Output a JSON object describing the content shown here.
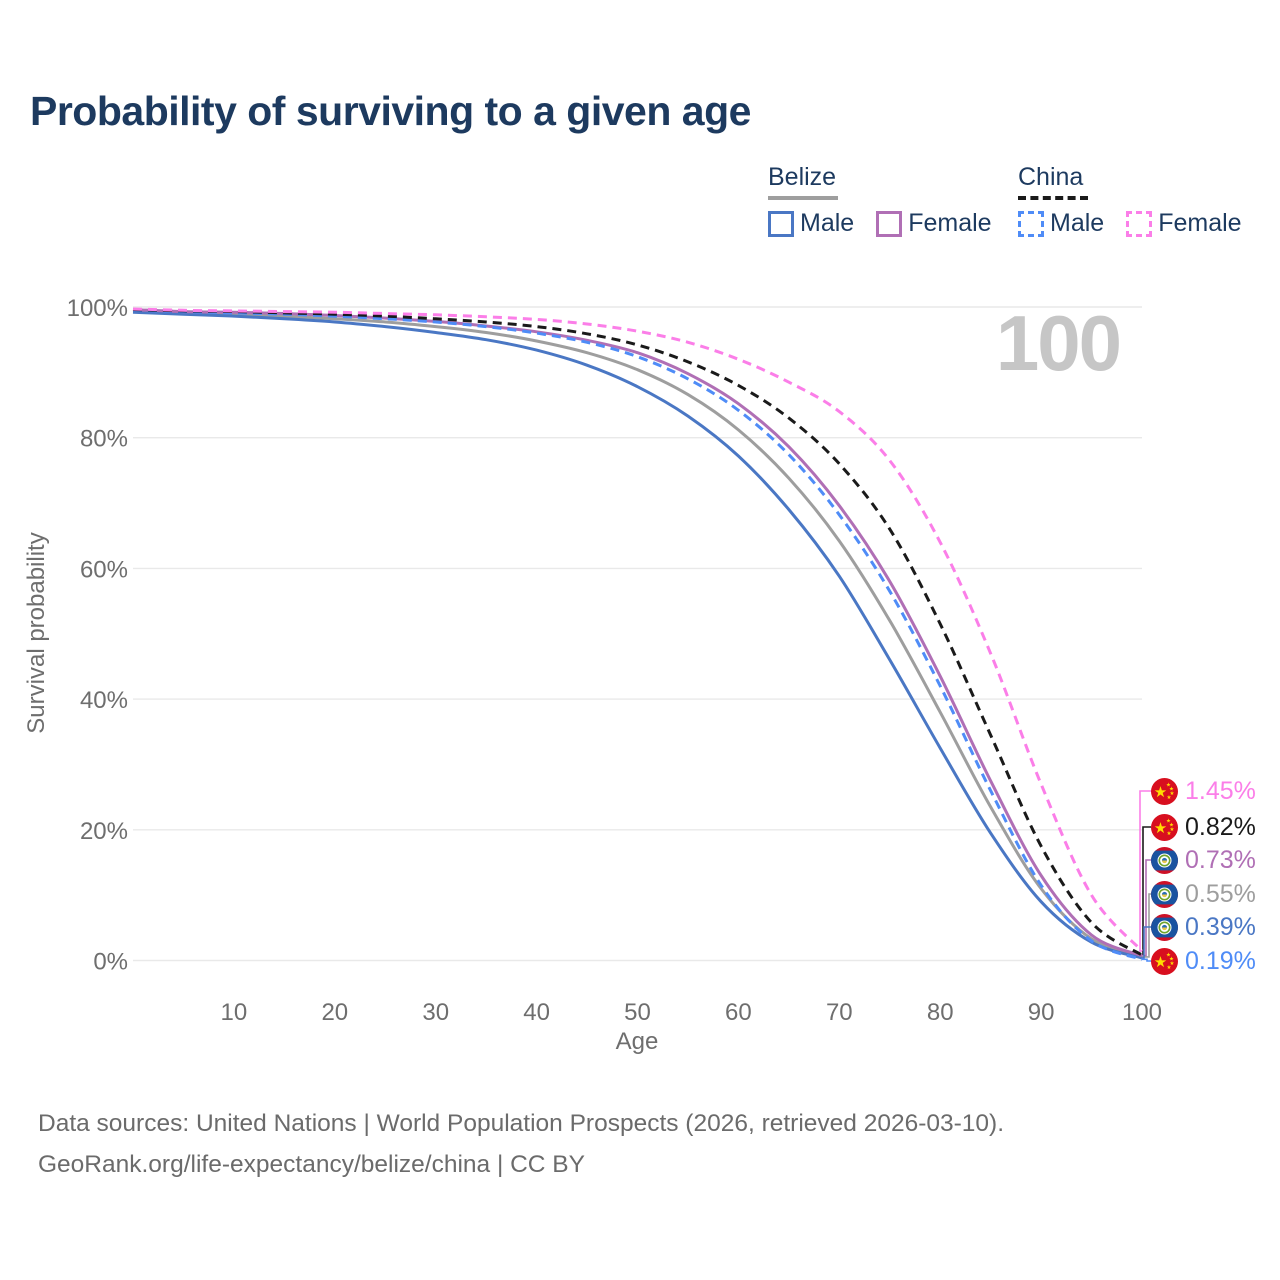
{
  "title": "Probability of surviving to a given age",
  "watermark": "100",
  "colors": {
    "title_text": "#1d3a5f",
    "axis_text": "#6e6e6e",
    "gridline": "#e9e9e9",
    "watermark": "#c6c6c6",
    "belize_male": "#4a77c4",
    "belize_female": "#b06fb5",
    "belize_all": "#9e9e9e",
    "china_male": "#4f8cf7",
    "china_female": "#fb7ee8",
    "china_all": "#1a1a1a"
  },
  "legend": {
    "groups": [
      {
        "label": "Belize",
        "style": "solid",
        "underline_color": "#9e9e9e",
        "items": [
          {
            "label": "Male",
            "color": "#4a77c4",
            "dashed": false
          },
          {
            "label": "Female",
            "color": "#b06fb5",
            "dashed": false
          }
        ]
      },
      {
        "label": "China",
        "style": "dashed",
        "underline_color": "#1a1a1a",
        "items": [
          {
            "label": "Male",
            "color": "#4f8cf7",
            "dashed": true
          },
          {
            "label": "Female",
            "color": "#fb7ee8",
            "dashed": true
          }
        ]
      }
    ]
  },
  "chart_data": {
    "type": "line",
    "title": "Probability of surviving to a given age",
    "xlabel": "Age",
    "ylabel": "Survival probability",
    "xlim": [
      0,
      100
    ],
    "ylim": [
      0,
      100
    ],
    "grid": "horizontal",
    "legend_position": "top-right",
    "x_ticks": [
      {
        "value": 10,
        "label": "10"
      },
      {
        "value": 20,
        "label": "20"
      },
      {
        "value": 30,
        "label": "30"
      },
      {
        "value": 40,
        "label": "40"
      },
      {
        "value": 50,
        "label": "50"
      },
      {
        "value": 60,
        "label": "60"
      },
      {
        "value": 70,
        "label": "70"
      },
      {
        "value": 80,
        "label": "80"
      },
      {
        "value": 90,
        "label": "90"
      },
      {
        "value": 100,
        "label": "100"
      }
    ],
    "y_ticks": [
      {
        "value": 0,
        "label": "0%"
      },
      {
        "value": 20,
        "label": "20%"
      },
      {
        "value": 40,
        "label": "40%"
      },
      {
        "value": 60,
        "label": "60%"
      },
      {
        "value": 80,
        "label": "80%"
      },
      {
        "value": 100,
        "label": "100%"
      }
    ],
    "x": [
      0,
      5,
      10,
      15,
      20,
      25,
      30,
      35,
      40,
      45,
      50,
      55,
      60,
      65,
      70,
      75,
      80,
      85,
      90,
      95,
      100
    ],
    "series": [
      {
        "key": "belize-all",
        "name": "Belize",
        "country": "Belize",
        "sex": "Both",
        "color": "#9e9e9e",
        "dashed": false,
        "values": [
          99.4,
          99.1,
          98.9,
          98.6,
          98.2,
          97.7,
          97.0,
          96.1,
          94.8,
          93.0,
          90.4,
          86.6,
          81.2,
          73.8,
          64.2,
          52.0,
          38.0,
          23.5,
          11.0,
          3.3,
          0.55
        ]
      },
      {
        "key": "belize-male",
        "name": "Belize Male",
        "country": "Belize",
        "sex": "Male",
        "color": "#4a77c4",
        "dashed": false,
        "values": [
          99.2,
          98.9,
          98.6,
          98.2,
          97.7,
          97.0,
          96.1,
          95.0,
          93.4,
          91.1,
          87.8,
          83.3,
          77.2,
          69.0,
          58.8,
          46.0,
          32.5,
          19.5,
          9.0,
          2.8,
          0.39
        ]
      },
      {
        "key": "belize-female",
        "name": "Belize Female",
        "country": "Belize",
        "sex": "Female",
        "color": "#b06fb5",
        "dashed": false,
        "values": [
          99.6,
          99.3,
          99.2,
          99.0,
          98.7,
          98.3,
          97.8,
          97.1,
          96.2,
          94.9,
          93.0,
          89.8,
          85.2,
          78.6,
          69.6,
          58.0,
          43.5,
          27.5,
          13.0,
          3.9,
          0.73
        ]
      },
      {
        "key": "china-male",
        "name": "China Male",
        "country": "China",
        "sex": "Male",
        "color": "#4f8cf7",
        "dashed": true,
        "values": [
          99.5,
          99.3,
          99.1,
          98.9,
          98.6,
          98.2,
          97.7,
          97.0,
          96.0,
          94.6,
          92.4,
          89.0,
          84.2,
          77.4,
          68.2,
          56.5,
          42.0,
          26.0,
          11.5,
          3.0,
          0.19
        ]
      },
      {
        "key": "china-all",
        "name": "China",
        "country": "China",
        "sex": "Both",
        "color": "#1a1a1a",
        "dashed": true,
        "values": [
          99.6,
          99.4,
          99.3,
          99.1,
          98.9,
          98.6,
          98.2,
          97.7,
          97.0,
          95.9,
          94.2,
          91.6,
          88.0,
          83.0,
          76.0,
          66.0,
          51.5,
          34.5,
          17.5,
          5.8,
          0.82
        ]
      },
      {
        "key": "china-female",
        "name": "China Female",
        "country": "China",
        "sex": "Female",
        "color": "#fb7ee8",
        "dashed": true,
        "values": [
          99.7,
          99.5,
          99.4,
          99.3,
          99.2,
          99.0,
          98.8,
          98.5,
          98.1,
          97.4,
          96.3,
          94.6,
          92.0,
          88.5,
          84.0,
          76.5,
          64.0,
          47.0,
          27.0,
          10.0,
          1.45
        ]
      }
    ],
    "end_labels": [
      {
        "series": "china-female",
        "text": "1.45%",
        "color": "#fb7ee8",
        "flag": "china"
      },
      {
        "series": "china-all",
        "text": "0.82%",
        "color": "#1a1a1a",
        "flag": "china"
      },
      {
        "series": "belize-female",
        "text": "0.73%",
        "color": "#b06fb5",
        "flag": "belize"
      },
      {
        "series": "belize-all",
        "text": "0.55%",
        "color": "#9e9e9e",
        "flag": "belize"
      },
      {
        "series": "belize-male",
        "text": "0.39%",
        "color": "#4a77c4",
        "flag": "belize"
      },
      {
        "series": "china-male",
        "text": "0.19%",
        "color": "#4f8cf7",
        "flag": "china"
      }
    ]
  },
  "flags": {
    "china": {
      "base": "#d80f1f",
      "star": "#ffde00"
    },
    "belize": {
      "stripe": "#ce1127",
      "field": "#1a53a0",
      "disc": "#ffffff",
      "wreath": "#6fa32c",
      "emblem_top": "#2a6db5",
      "emblem_bottom": "#e8c84a"
    }
  },
  "footer": {
    "line1": "Data sources: United Nations | World Population Prospects (2026, retrieved 2026-03-10).",
    "line2": "GeoRank.org/life-expectancy/belize/china | CC BY"
  }
}
